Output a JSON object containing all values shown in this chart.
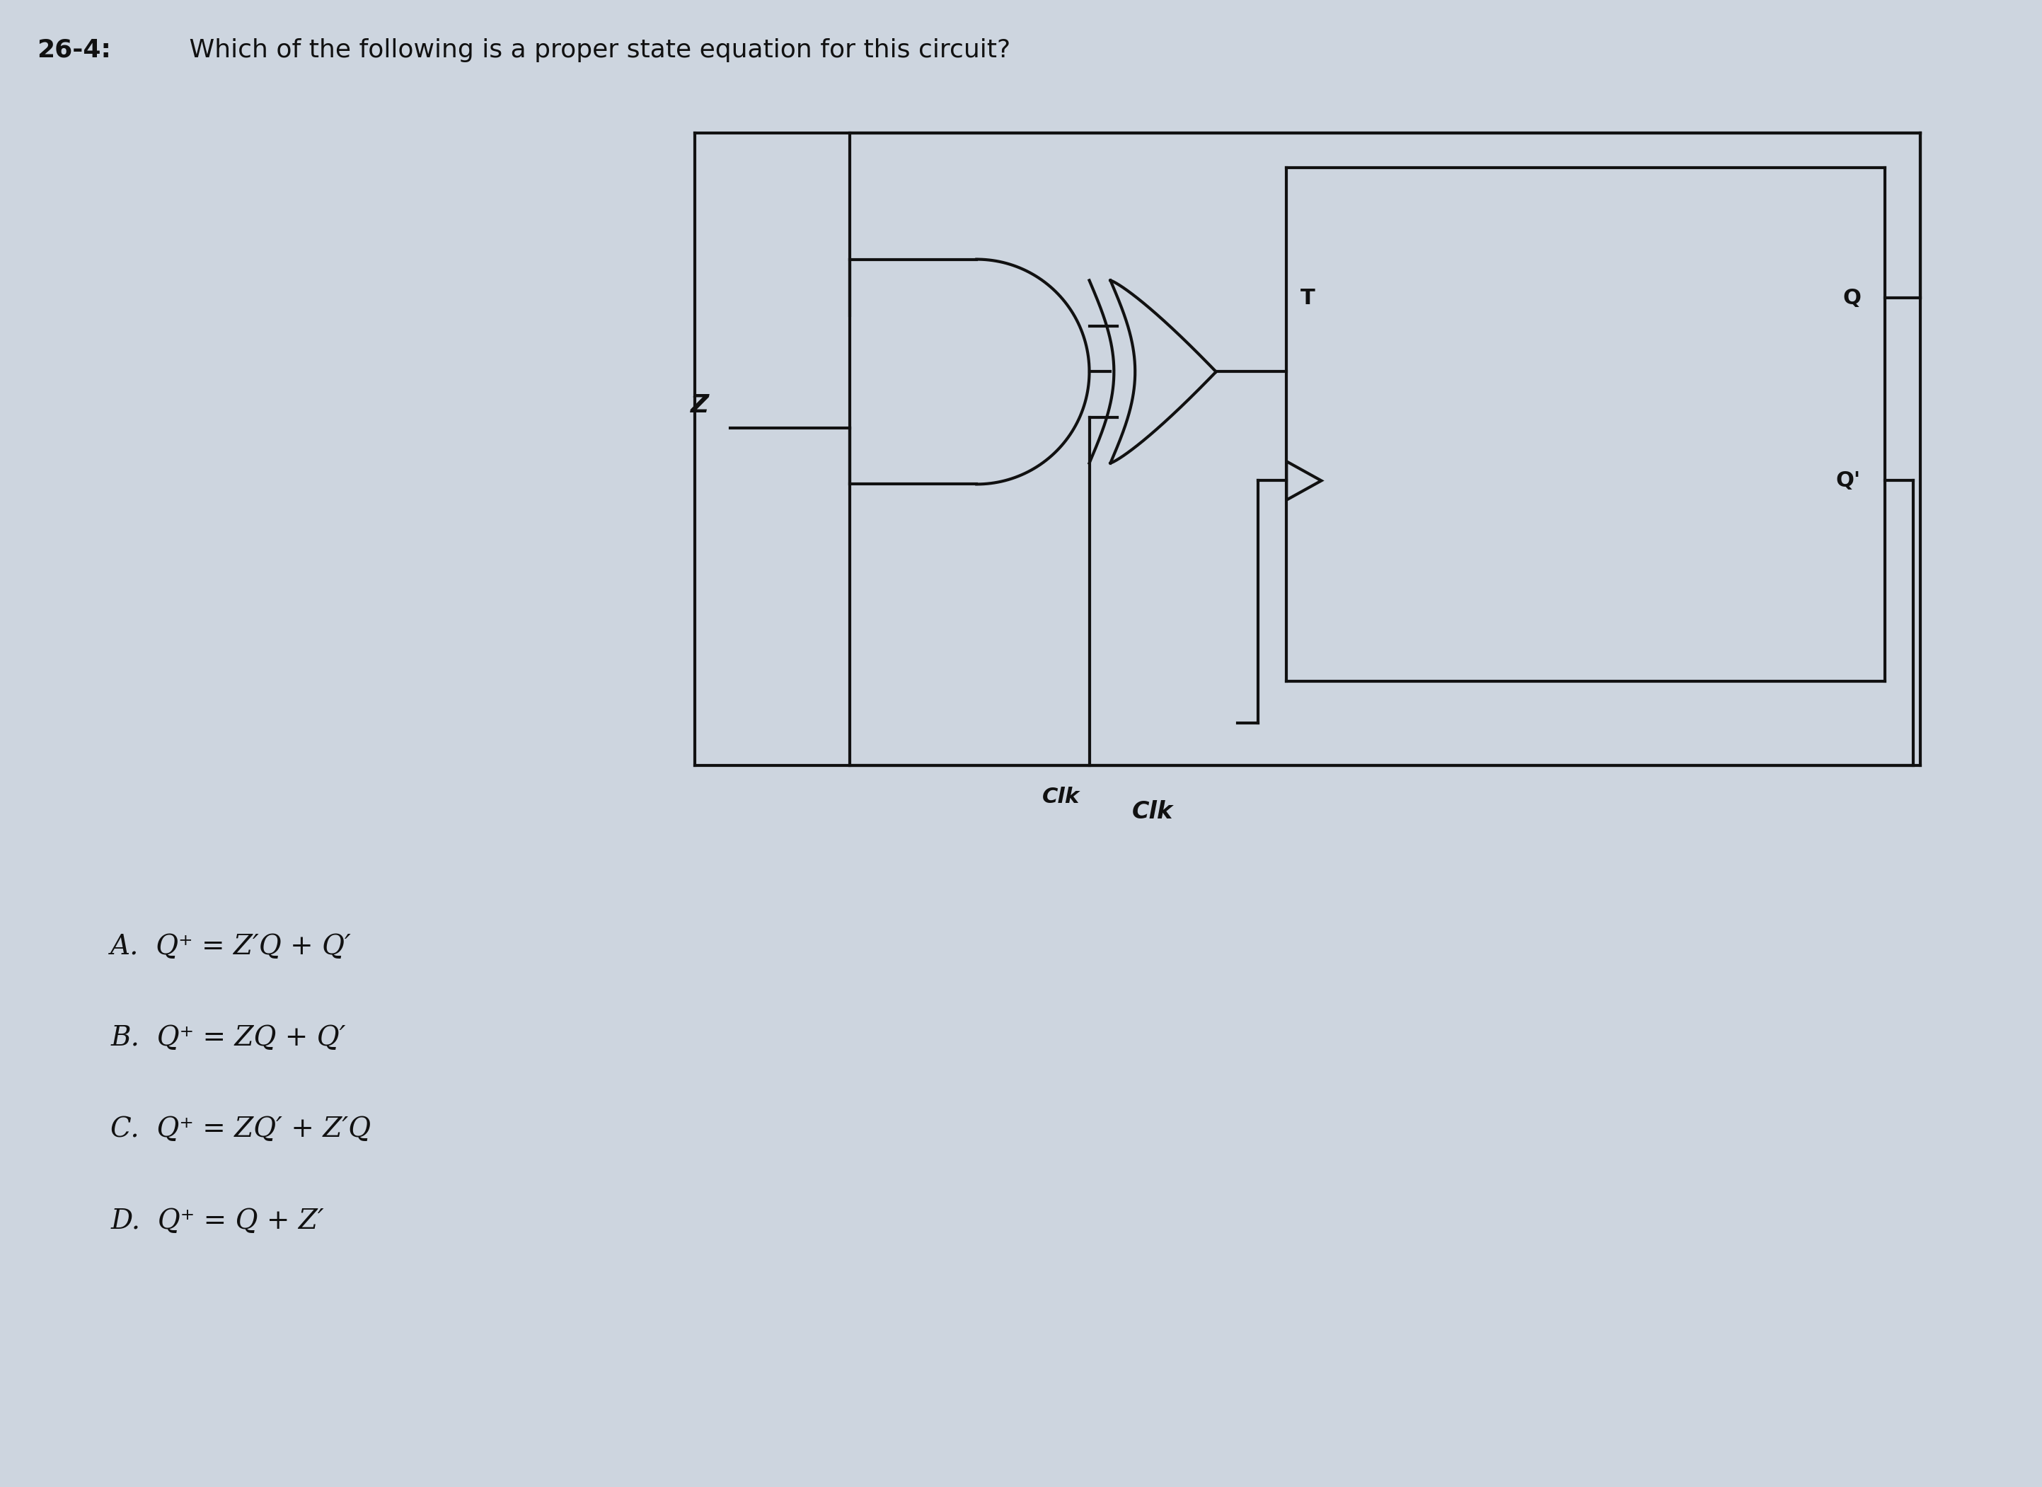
{
  "bg_color": "#cdd5df",
  "line_color": "#111111",
  "text_color": "#111111",
  "title_bold": "26-4:",
  "title_rest": " Which of the following is a proper state equation for this circuit?",
  "title_fontsize": 26,
  "options_fontsize": 28,
  "option_A": "A.  Q⁺ = Z′Q + Q′",
  "option_B": "B.  Q⁺ = ZQ + Q′",
  "option_C": "C.  Q⁺ = ZQ′ + Z′Q",
  "option_D": "D.  Q⁺ = Q + Z′",
  "lw": 2.5
}
